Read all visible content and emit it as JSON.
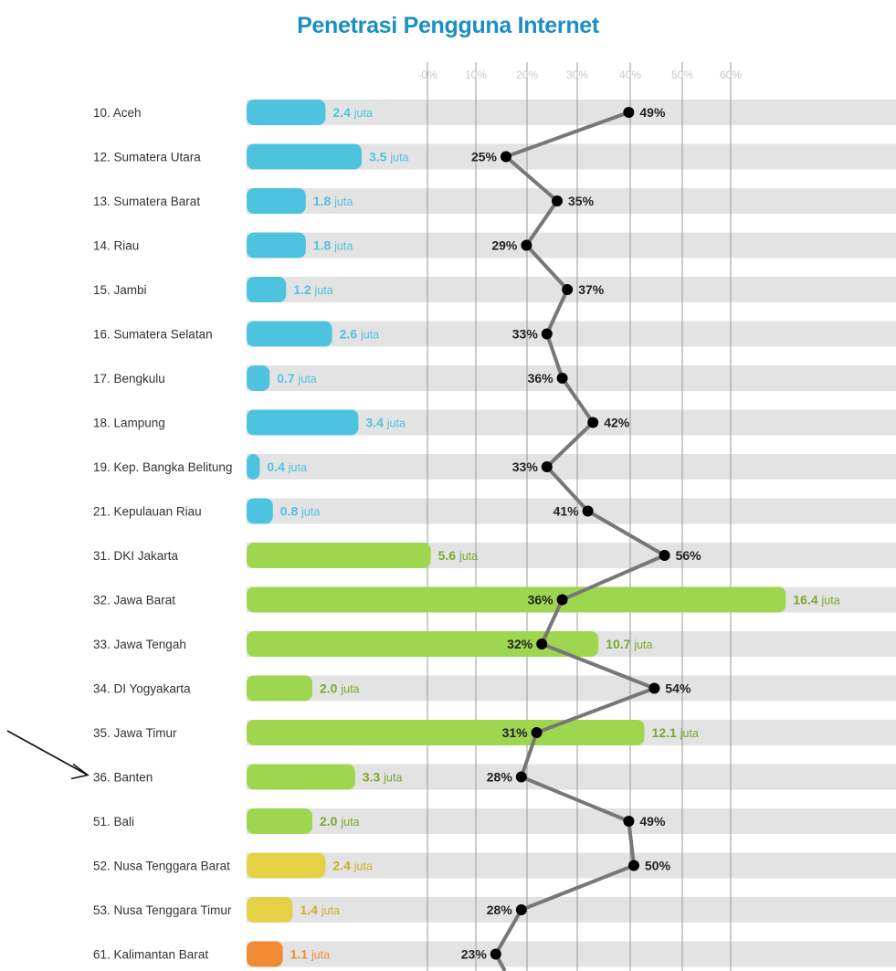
{
  "chart_data": {
    "type": "bar",
    "title": "Penetrasi Pengguna Internet",
    "xlabel": "",
    "ylabel": "",
    "bar_unit": "juta",
    "line_unit": "%",
    "percent_axis_ticks": [
      "-0%",
      "10%",
      "20%",
      "30%",
      "40%",
      "50%",
      "60%"
    ],
    "percent_axis_range": [
      0,
      60
    ],
    "grid": true,
    "colors": {
      "sumatera": "#4ec3df",
      "jawa_bali": "#9ed64f",
      "nusa_tenggara": "#e6d046",
      "kalimantan": "#f08a33",
      "row_band": "#e3e3e3",
      "line": "#777777",
      "marker": "#000000",
      "title": "#1a8fc4"
    },
    "categories": [
      "10. Aceh",
      "12. Sumatera Utara",
      "13. Sumatera Barat",
      "14. Riau",
      "15. Jambi",
      "16. Sumatera Selatan",
      "17. Bengkulu",
      "18. Lampung",
      "19. Kep. Bangka Belitung",
      "21. Kepulauan Riau",
      "31. DKI Jakarta",
      "32. Jawa Barat",
      "33. Jawa Tengah",
      "34. DI Yogyakarta",
      "35. Jawa Timur",
      "36. Banten",
      "51. Bali",
      "52. Nusa Tenggara Barat",
      "53. Nusa Tenggara Timur",
      "61. Kalimantan Barat"
    ],
    "series": [
      {
        "name": "",
        "kind": "bar",
        "values": [
          2.4,
          3.5,
          1.8,
          1.8,
          1.2,
          2.6,
          0.7,
          3.4,
          0.4,
          0.8,
          5.6,
          16.4,
          10.7,
          2.0,
          12.1,
          3.3,
          2.0,
          2.4,
          1.4,
          1.1
        ],
        "labels": [
          "2.4",
          "3.5",
          "1.8",
          "1.8",
          "1.2",
          "2.6",
          "0.7",
          "3.4",
          "0.4",
          "0.8",
          "5.6",
          "16.4",
          "10.7",
          "2.0",
          "12.1",
          "3.3",
          "2.0",
          "2.4",
          "1.4",
          "1.1"
        ],
        "groups": [
          "sumatera",
          "sumatera",
          "sumatera",
          "sumatera",
          "sumatera",
          "sumatera",
          "sumatera",
          "sumatera",
          "sumatera",
          "sumatera",
          "jawa_bali",
          "jawa_bali",
          "jawa_bali",
          "jawa_bali",
          "jawa_bali",
          "jawa_bali",
          "jawa_bali",
          "nusa_tenggara",
          "nusa_tenggara",
          "kalimantan"
        ]
      },
      {
        "name": "",
        "kind": "line",
        "values": [
          49,
          25,
          35,
          29,
          37,
          33,
          36,
          42,
          33,
          41,
          56,
          36,
          32,
          54,
          31,
          28,
          49,
          50,
          28,
          23
        ],
        "label_side": [
          "right",
          "left",
          "right",
          "left",
          "right",
          "left",
          "left",
          "right",
          "left",
          "left",
          "right",
          "left",
          "left",
          "right",
          "left",
          "left",
          "right",
          "right",
          "left",
          "left"
        ]
      }
    ],
    "annotation": {
      "type": "arrow",
      "target": "36. Banten"
    }
  }
}
